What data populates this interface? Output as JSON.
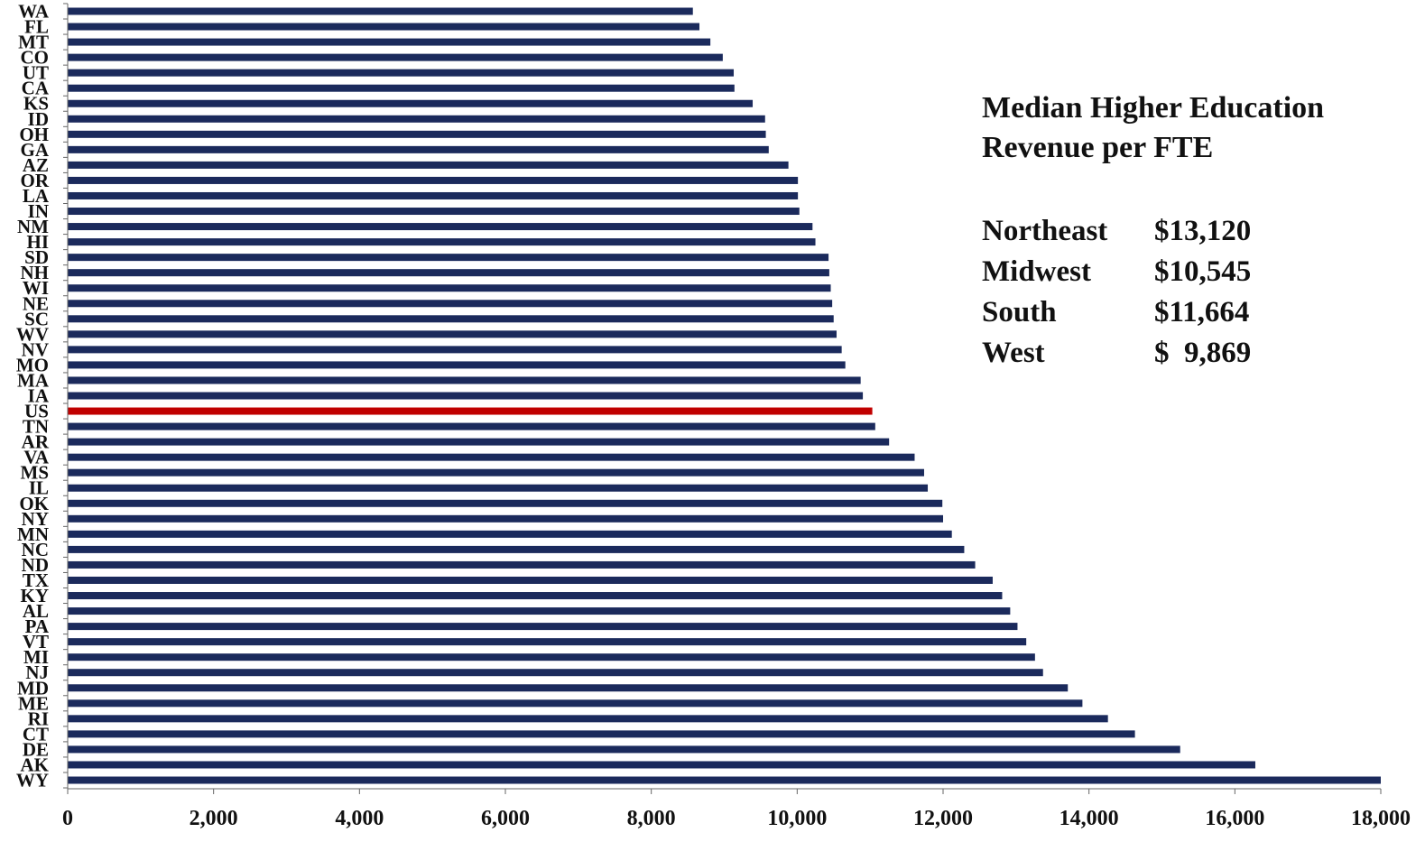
{
  "chart_data": {
    "type": "bar",
    "orientation": "horizontal",
    "categories": [
      "WA",
      "FL",
      "MT",
      "CO",
      "UT",
      "CA",
      "KS",
      "ID",
      "OH",
      "GA",
      "AZ",
      "OR",
      "LA",
      "IN",
      "NM",
      "HI",
      "SD",
      "NH",
      "WI",
      "NE",
      "SC",
      "WV",
      "NV",
      "MO",
      "MA",
      "IA",
      "US",
      "TN",
      "AR",
      "VA",
      "MS",
      "IL",
      "OK",
      "NY",
      "MN",
      "NC",
      "ND",
      "TX",
      "KY",
      "AL",
      "PA",
      "VT",
      "MI",
      "NJ",
      "MD",
      "ME",
      "RI",
      "CT",
      "DE",
      "AK",
      "WY"
    ],
    "values": [
      8570,
      8660,
      8810,
      8980,
      9130,
      9140,
      9390,
      9560,
      9570,
      9610,
      9880,
      10010,
      10010,
      10030,
      10210,
      10250,
      10430,
      10440,
      10460,
      10480,
      10500,
      10540,
      10610,
      10660,
      10870,
      10900,
      11030,
      11070,
      11260,
      11610,
      11740,
      11790,
      11990,
      12000,
      12120,
      12290,
      12440,
      12680,
      12810,
      12920,
      13020,
      13140,
      13260,
      13370,
      13710,
      13910,
      14260,
      14630,
      15250,
      16280,
      18000
    ],
    "highlight": "US",
    "xlim": [
      0,
      18000
    ],
    "xticks": [
      0,
      2000,
      4000,
      6000,
      8000,
      10000,
      12000,
      14000,
      16000,
      18000
    ],
    "xtick_labels": [
      "0",
      "2,000",
      "4,000",
      "6,000",
      "8,000",
      "10,000",
      "12,000",
      "14,000",
      "16,000",
      "18,000"
    ],
    "title": "",
    "xlabel": "",
    "ylabel": "",
    "grid": false,
    "colors": {
      "bar": "#1b2a5c",
      "highlight": "#c00000",
      "axis": "#666666"
    }
  },
  "annotation": {
    "title_line1": "Median Higher Education",
    "title_line2": "Revenue per FTE",
    "regions": [
      {
        "name": "Northeast",
        "value": "$13,120"
      },
      {
        "name": "Midwest",
        "value": "$10,545"
      },
      {
        "name": "South",
        "value": "$11,664"
      },
      {
        "name": "West",
        "value": "$  9,869"
      }
    ]
  }
}
